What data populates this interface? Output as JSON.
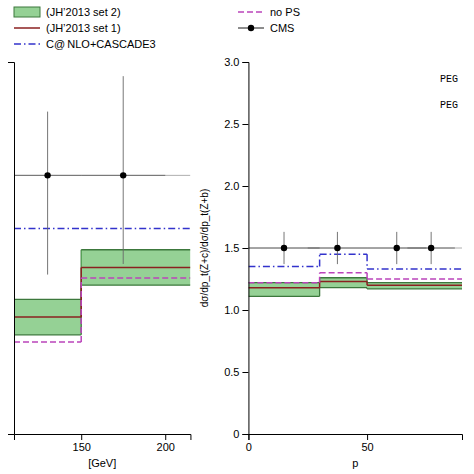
{
  "chart_data": [
    {
      "type": "step",
      "xlabel": "[GeV]",
      "xlim": [
        110,
        215
      ],
      "ylim": [
        1.0,
        2.05
      ],
      "xticks": [
        150,
        200
      ],
      "tick_labels": "x",
      "legend": "upper left",
      "series": [
        {
          "type": "hline",
          "color": "#999999",
          "values": [
            1.73
          ]
        },
        {
          "type": "band",
          "name": "(JH’2013 set 2)",
          "color": "#5cb85c",
          "bins": [
            110,
            150,
            215
          ],
          "low": [
            1.28,
            1.42
          ],
          "high": [
            1.38,
            1.52
          ]
        },
        {
          "type": "step",
          "name": "(JH’2013 set 1)",
          "color": "#8b2020",
          "line_style": "solid",
          "bins": [
            110,
            150,
            215
          ],
          "values": [
            1.33,
            1.47
          ]
        },
        {
          "type": "step",
          "name": "C@ NLO+CASCADE3",
          "color": "#3333cc",
          "line_style": "dash-dot",
          "bins": [
            110,
            150,
            215
          ],
          "values": [
            1.58,
            1.58
          ]
        },
        {
          "type": "step",
          "name": "no PS",
          "color": "#bb44bb",
          "line_style": "dashed",
          "bins": [
            110,
            150,
            215
          ],
          "values": [
            1.26,
            1.44
          ]
        },
        {
          "type": "errorbar",
          "name": "CMS",
          "color": "#000000",
          "marker": "circle",
          "x": [
            130,
            175
          ],
          "values": [
            1.73,
            1.73
          ],
          "xerr": [
            20,
            25
          ],
          "yerr_lo": [
            0.28,
            0.25
          ],
          "yerr_hi": [
            0.18,
            0.28
          ]
        }
      ]
    },
    {
      "type": "step",
      "xlabel": "p",
      "ylabel": "dσ/dp_t(Z+c)/dσ/dp_t(Z+b)",
      "xlim": [
        0,
        90
      ],
      "ylim": [
        0,
        3.0
      ],
      "xticks": [
        0,
        50
      ],
      "yticks": [
        0,
        0.5,
        {
          "value": 1.0,
          "label": "1.0"
        },
        1.5,
        {
          "value": 2.0,
          "label": "2.0"
        },
        2.5,
        {
          "value": 3.0,
          "label": "3.0"
        }
      ],
      "annotations": [
        "PEG",
        "PEG"
      ],
      "series": [
        {
          "type": "hline",
          "color": "#999999",
          "values": [
            1.5
          ]
        },
        {
          "type": "band",
          "color": "#5cb85c",
          "bins": [
            0,
            30,
            50,
            90
          ],
          "low": [
            1.11,
            1.18,
            1.17
          ],
          "high": [
            1.22,
            1.26,
            1.22
          ]
        },
        {
          "type": "step",
          "color": "#8b2020",
          "line_style": "solid",
          "bins": [
            0,
            30,
            50,
            90
          ],
          "values": [
            1.18,
            1.23,
            1.2
          ]
        },
        {
          "type": "step",
          "color": "#3333cc",
          "line_style": "dash-dot",
          "bins": [
            0,
            30,
            50,
            90
          ],
          "values": [
            1.35,
            1.45,
            1.33
          ]
        },
        {
          "type": "step",
          "color": "#bb44bb",
          "line_style": "dashed",
          "bins": [
            0,
            30,
            50,
            90
          ],
          "values": [
            1.22,
            1.3,
            1.25
          ]
        },
        {
          "type": "errorbar",
          "color": "#000000",
          "marker": "circle",
          "x": [
            15,
            37.5,
            62.5,
            77
          ],
          "values": [
            1.5,
            1.5,
            1.5,
            1.5
          ],
          "xerr_lo": [
            15,
            12.5,
            12.5,
            10
          ],
          "xerr_hi": [
            15,
            12.5,
            12.5,
            10
          ],
          "yerr_lo": [
            0.13,
            0.13,
            0.13,
            0.13
          ],
          "yerr_hi": [
            0.13,
            0.13,
            0.13,
            0.13
          ]
        }
      ]
    }
  ]
}
